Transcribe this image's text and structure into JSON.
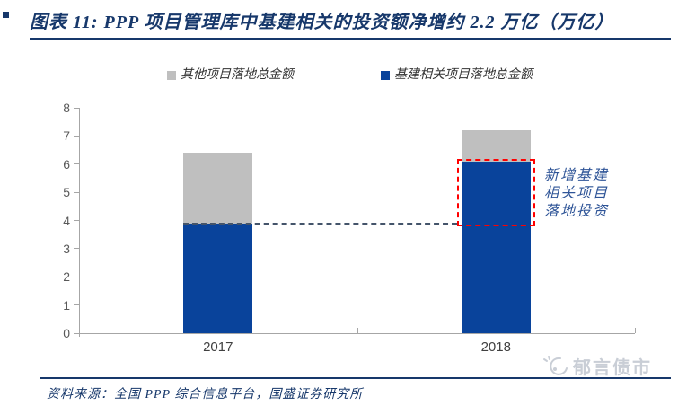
{
  "header": {
    "title": "图表 11:  PPP 项目管理库中基建相关的投资额净增约 2.2 万亿（万亿）"
  },
  "legend": {
    "items": [
      {
        "label": "其他项目落地总金额",
        "color": "#BFBFBF"
      },
      {
        "label": "基建相关项目落地总金额",
        "color": "#09439B"
      }
    ]
  },
  "annotation": {
    "lines": [
      "新增基建",
      "相关项目",
      "落地投资"
    ]
  },
  "footer": {
    "source": "资料来源：全国 PPP 综合信息平台，国盛证券研究所",
    "watermark": "郁言债市"
  },
  "colors": {
    "accent_navy": "#17386B",
    "bar_blue": "#09439B",
    "bar_gray": "#BFBFBF",
    "axis": "#A6A6A6",
    "tick_label": "#595959",
    "reference_dash": "#44546A",
    "highlight_red": "#FF0000",
    "annotation_blue": "#2E5497",
    "watermark_gray": "#C9CED6"
  },
  "chart_data": {
    "type": "bar",
    "stacked": true,
    "title": "图表 11: PPP 项目管理库中基建相关的投资额净增约 2.2 万亿（万亿）",
    "categories": [
      "2017",
      "2018"
    ],
    "series": [
      {
        "name": "基建相关项目落地总金额",
        "color": "#09439B",
        "values": [
          3.9,
          6.1
        ]
      },
      {
        "name": "其他项目落地总金额",
        "color": "#BFBFBF",
        "values": [
          2.5,
          1.1
        ]
      }
    ],
    "stack_totals": [
      6.4,
      7.2
    ],
    "ylim": [
      0,
      8
    ],
    "ytick_step": 1,
    "xlabel": "",
    "ylabel": "",
    "grid": false,
    "legend_position": "top",
    "reference_line": {
      "y": 3.9,
      "style": "dashed",
      "color": "#44546A"
    },
    "highlight_box": {
      "category": "2018",
      "from": 3.9,
      "to": 6.1,
      "color": "#FF0000",
      "label": "新增基建相关项目落地投资"
    }
  }
}
